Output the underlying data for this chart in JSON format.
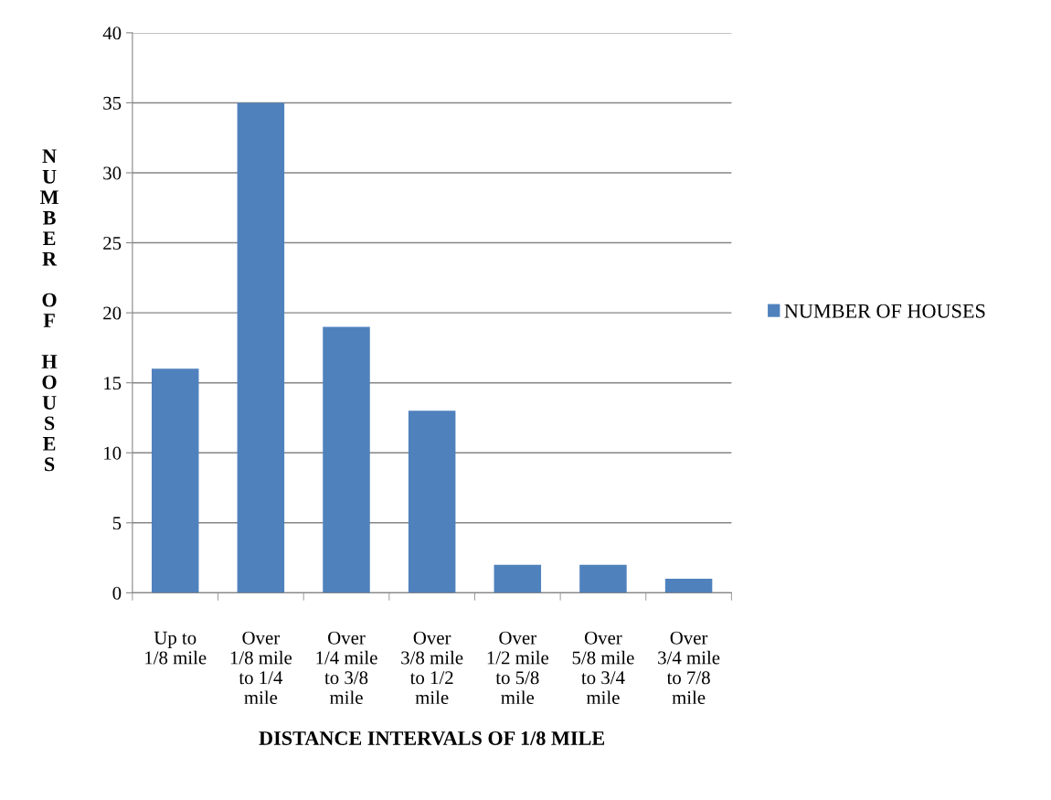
{
  "chart_data": {
    "type": "bar",
    "categories": [
      "Up to\n1/8 mile",
      "Over\n1/8 mile\nto 1/4\nmile",
      "Over\n1/4 mile\nto 3/8\nmile",
      "Over\n3/8 mile\nto 1/2\nmile",
      "Over\n1/2 mile\nto 5/8\nmile",
      "Over\n5/8 mile\nto 3/4\nmile",
      "Over\n3/4 mile\nto 7/8\nmile"
    ],
    "series": [
      {
        "name": "NUMBER OF HOUSES",
        "color": "#4f81bd",
        "values": [
          16,
          35,
          19,
          13,
          2,
          2,
          1
        ]
      }
    ],
    "xlabel": "DISTANCE INTERVALS OF 1/8 MILE",
    "ylabel": "NUMBER OF HOUSES",
    "ylim": [
      0,
      40
    ],
    "yticks": [
      0,
      5,
      10,
      15,
      20,
      25,
      30,
      35,
      40
    ],
    "grid": "y",
    "legend": "right"
  }
}
